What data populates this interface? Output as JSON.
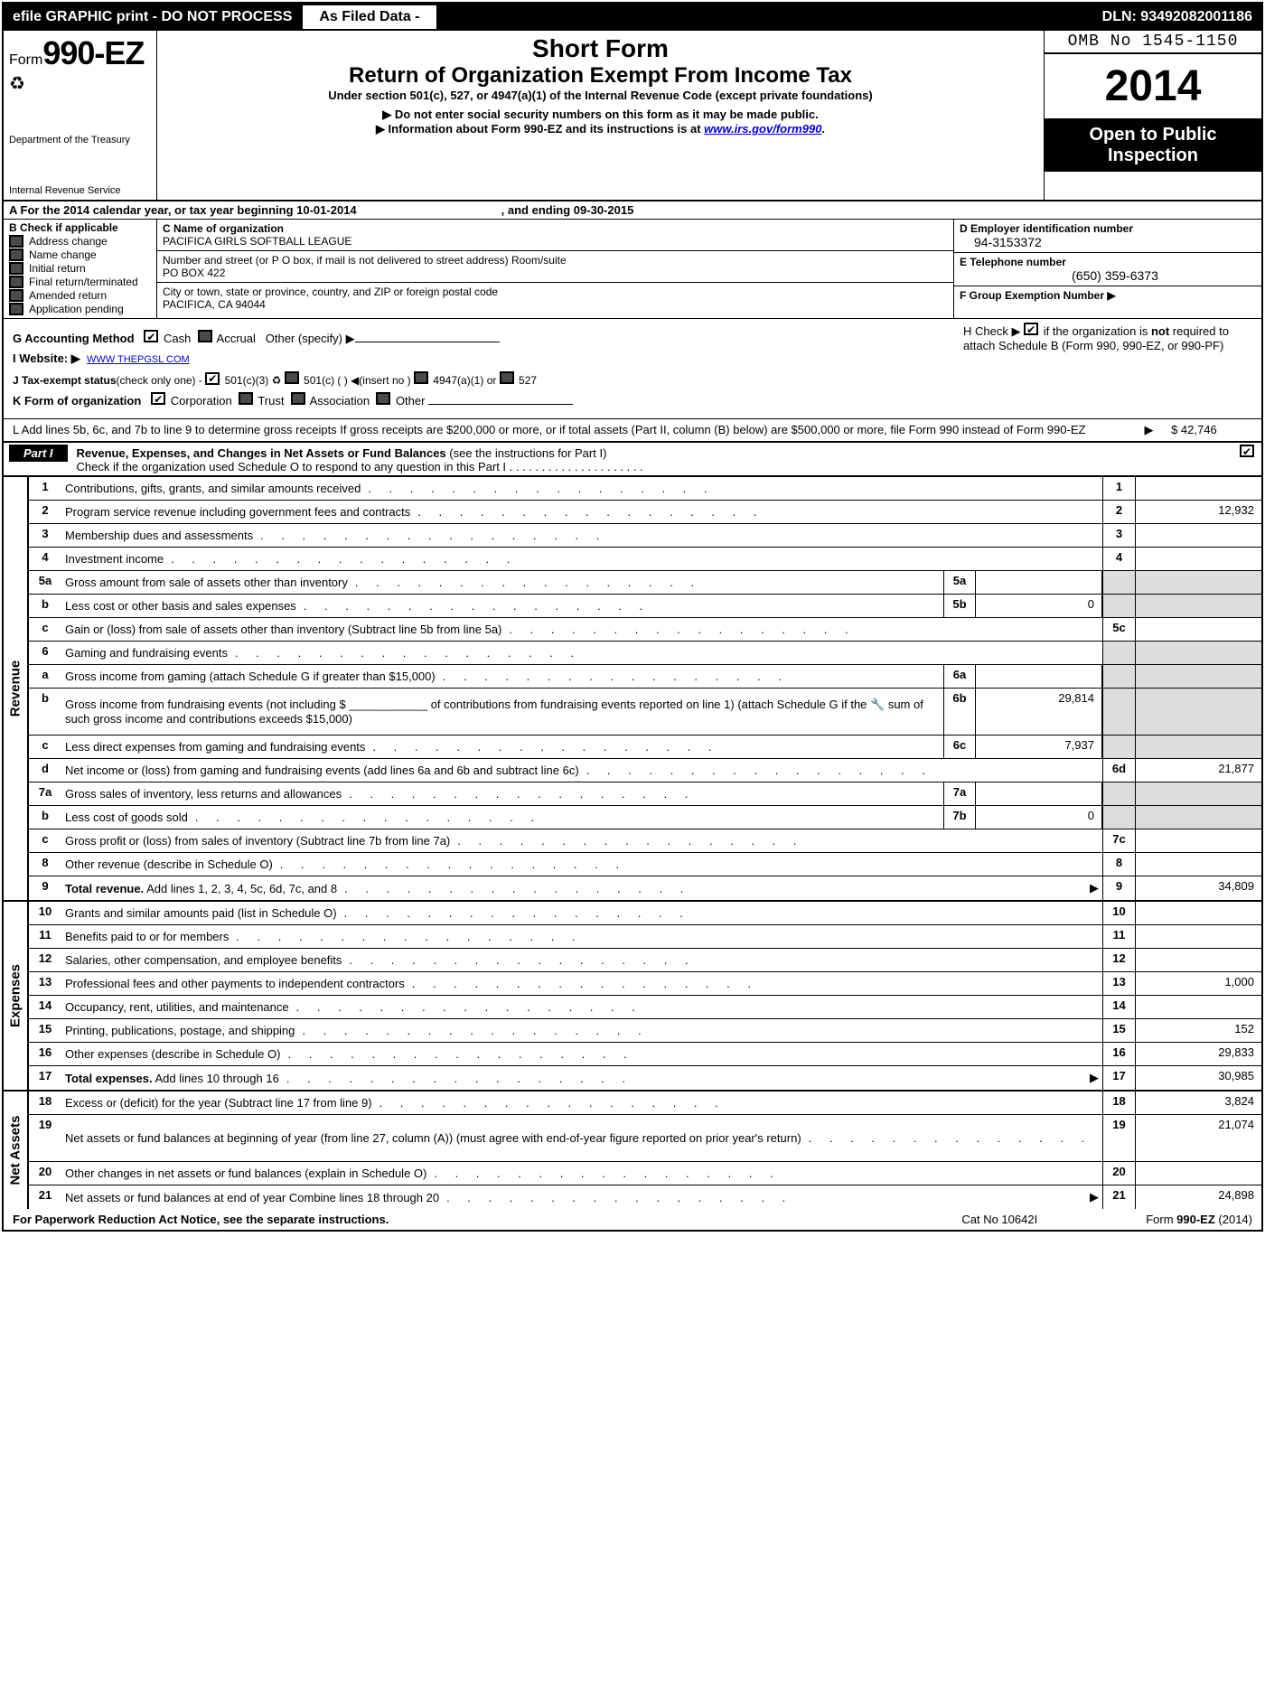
{
  "colors": {
    "black": "#000000",
    "white": "#ffffff",
    "shade": "#dddddd",
    "linkblue": "#0000ee"
  },
  "topbar": {
    "efile": "efile GRAPHIC print - DO NOT PROCESS",
    "asfiled": "As Filed Data -",
    "dln": "DLN: 93492082001186"
  },
  "header": {
    "form_prefix": "Form",
    "form_number": "990-EZ",
    "dept1": "Department of the Treasury",
    "dept2": "Internal Revenue Service",
    "short": "Short Form",
    "return": "Return of Organization Exempt From Income Tax",
    "under": "Under section 501(c), 527, or 4947(a)(1) of the Internal Revenue Code (except private foundations)",
    "do_not": "▶ Do not enter social security numbers on this form as it may be made public.",
    "info_pre": "▶ Information about Form 990-EZ and its instructions is at ",
    "info_link": "www.irs.gov/form990",
    "info_post": ".",
    "omb": "OMB No 1545-1150",
    "year": "2014",
    "open": "Open to Public Inspection"
  },
  "rowA": {
    "label": "A  For the 2014 calendar year, or tax year beginning 10-01-2014",
    "ending": ", and ending 09-30-2015"
  },
  "colB": {
    "title": "B  Check if applicable",
    "items": [
      "Address change",
      "Name change",
      "Initial return",
      "Final return/terminated",
      "Amended return",
      "Application pending"
    ]
  },
  "colC": {
    "name_label": "C Name of organization",
    "name": "PACIFICA GIRLS SOFTBALL LEAGUE",
    "street_label": "Number and street (or P  O  box, if mail is not delivered to street address) Room/suite",
    "street": "PO BOX 422",
    "city_label": "City or town, state or province, country, and ZIP or foreign postal code",
    "city": "PACIFICA, CA  94044"
  },
  "colD": {
    "d_label": "D Employer identification number",
    "d_val": "94-3153372",
    "e_label": "E Telephone number",
    "e_val": "(650) 359-6373",
    "f_label": "F Group Exemption Number  ▶"
  },
  "ghijk": {
    "g": "G Accounting Method",
    "g_cash": "Cash",
    "g_accrual": "Accrual",
    "g_other": "Other (specify) ▶",
    "h1": "H  Check ▶",
    "h2": "if the organization is ",
    "h_not": "not",
    "h3": " required to attach Schedule B (Form 990, 990-EZ, or 990-PF)",
    "i": "I Website: ▶",
    "i_val": "WWW THEPGSL COM",
    "j": "J Tax-exempt status",
    "j_sub": "(check only one) -",
    "j1": "501(c)(3)",
    "j2": "501(c) (   ) ◀(insert no )",
    "j3": "4947(a)(1) or",
    "j4": "527",
    "k": "K Form of organization",
    "k1": "Corporation",
    "k2": "Trust",
    "k3": "Association",
    "k4": "Other"
  },
  "rowL": {
    "text": "L Add lines 5b, 6c, and 7b to line 9 to determine gross receipts  If gross receipts are $200,000 or more, or if total assets (Part II, column (B) below) are $500,000 or more, file Form 990 instead of Form 990-EZ",
    "arrow": "▶",
    "amt": "$ 42,746"
  },
  "part1": {
    "label": "Part I",
    "title": "Revenue, Expenses, and Changes in Net Assets or Fund Balances ",
    "title_sub": "(see the instructions for Part I)",
    "sub": "Check if the organization used Schedule O to respond to any question in this Part I"
  },
  "sections": [
    {
      "label": "Revenue",
      "rows": [
        {
          "n": "1",
          "desc": "Contributions, gifts, grants, and similar amounts received",
          "en": "1",
          "ev": ""
        },
        {
          "n": "2",
          "desc": "Program service revenue including government fees and contracts",
          "en": "2",
          "ev": "12,932"
        },
        {
          "n": "3",
          "desc": "Membership dues and assessments",
          "en": "3",
          "ev": ""
        },
        {
          "n": "4",
          "desc": "Investment income",
          "en": "4",
          "ev": ""
        },
        {
          "n": "5a",
          "desc": "Gross amount from sale of assets other than inventory",
          "mn": "5a",
          "mv": "",
          "shade_end": true
        },
        {
          "n": "b",
          "desc": "Less  cost or other basis and sales expenses",
          "mn": "5b",
          "mv": "0",
          "shade_end": true
        },
        {
          "n": "c",
          "desc": "Gain or (loss) from sale of assets other than inventory (Subtract line 5b from line 5a)",
          "en": "5c",
          "ev": ""
        },
        {
          "n": "6",
          "desc": "Gaming and fundraising events",
          "shade_end": true,
          "no_border": true
        },
        {
          "n": "a",
          "desc": "Gross income from gaming (attach Schedule G if greater than $15,000)",
          "mn": "6a",
          "mv": "",
          "shade_end": true
        },
        {
          "n": "b",
          "desc": "Gross income from fundraising events (not including $ ____________ of contributions from fundraising events reported on line 1) (attach Schedule G if the 🔧 sum of such gross income and contributions exceeds $15,000)",
          "mn": "6b",
          "mv": "29,814",
          "shade_end": true,
          "tall": true
        },
        {
          "n": "c",
          "desc": "Less  direct expenses from gaming and fundraising events",
          "mn": "6c",
          "mv": "7,937",
          "shade_end": true
        },
        {
          "n": "d",
          "desc": "Net income or (loss) from gaming and fundraising events (add lines 6a and 6b and subtract line 6c)",
          "en": "6d",
          "ev": "21,877"
        },
        {
          "n": "7a",
          "desc": "Gross sales of inventory, less returns and allowances",
          "mn": "7a",
          "mv": "",
          "shade_end": true
        },
        {
          "n": "b",
          "desc": "Less  cost of goods sold",
          "mn": "7b",
          "mv": "0",
          "shade_end": true
        },
        {
          "n": "c",
          "desc": "Gross profit or (loss) from sales of inventory (Subtract line 7b from line 7a)",
          "en": "7c",
          "ev": ""
        },
        {
          "n": "8",
          "desc": "Other revenue (describe in Schedule O)",
          "en": "8",
          "ev": ""
        },
        {
          "n": "9",
          "desc": "Total revenue. Add lines 1, 2, 3, 4, 5c, 6d, 7c, and 8",
          "en": "9",
          "ev": "34,809",
          "bold": true,
          "arrow": true
        }
      ]
    },
    {
      "label": "Expenses",
      "rows": [
        {
          "n": "10",
          "desc": "Grants and similar amounts paid (list in Schedule O)",
          "en": "10",
          "ev": ""
        },
        {
          "n": "11",
          "desc": "Benefits paid to or for members",
          "en": "11",
          "ev": ""
        },
        {
          "n": "12",
          "desc": "Salaries, other compensation, and employee benefits",
          "en": "12",
          "ev": ""
        },
        {
          "n": "13",
          "desc": "Professional fees and other payments to independent contractors",
          "en": "13",
          "ev": "1,000"
        },
        {
          "n": "14",
          "desc": "Occupancy, rent, utilities, and maintenance",
          "en": "14",
          "ev": ""
        },
        {
          "n": "15",
          "desc": "Printing, publications, postage, and shipping",
          "en": "15",
          "ev": "152"
        },
        {
          "n": "16",
          "desc": "Other expenses (describe in Schedule O)",
          "en": "16",
          "ev": "29,833"
        },
        {
          "n": "17",
          "desc": "Total expenses. Add lines 10 through 16",
          "en": "17",
          "ev": "30,985",
          "bold": true,
          "arrow": true
        }
      ]
    },
    {
      "label": "Net Assets",
      "rows": [
        {
          "n": "18",
          "desc": "Excess or (deficit) for the year (Subtract line 17 from line 9)",
          "en": "18",
          "ev": "3,824"
        },
        {
          "n": "19",
          "desc": "Net assets or fund balances at beginning of year (from line 27, column (A)) (must agree with end-of-year figure reported on prior year's return)",
          "en": "19",
          "ev": "21,074",
          "tall": true
        },
        {
          "n": "20",
          "desc": "Other changes in net assets or fund balances (explain in Schedule O)",
          "en": "20",
          "ev": ""
        },
        {
          "n": "21",
          "desc": "Net assets or fund balances at end of year  Combine lines 18 through 20",
          "en": "21",
          "ev": "24,898",
          "arrow": true
        }
      ]
    }
  ],
  "footer": {
    "fpr": "For Paperwork Reduction Act Notice, see the separate instructions.",
    "cat": "Cat No  10642I",
    "frm_pre": "Form ",
    "frm_b": "990-EZ",
    "frm_post": " (2014)"
  }
}
